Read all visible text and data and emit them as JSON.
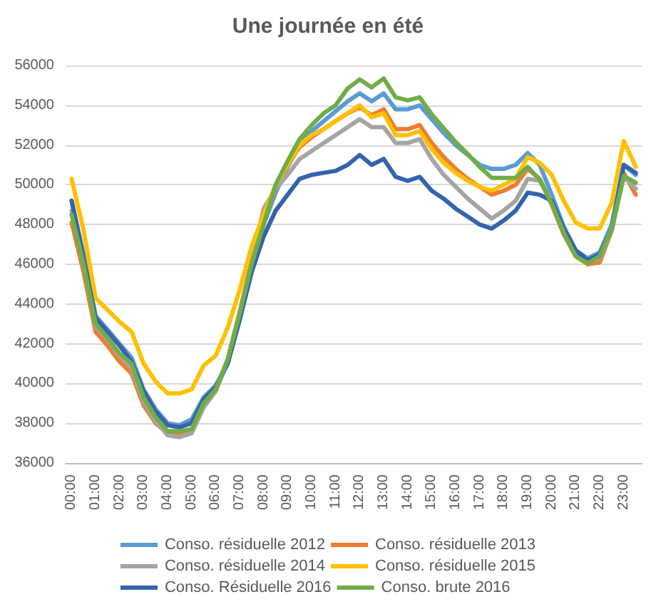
{
  "chart_data": {
    "type": "line",
    "title": "Une journée en été",
    "categories": [
      "00:00",
      null,
      "01:00",
      null,
      "02:00",
      null,
      "03:00",
      null,
      "04:00",
      null,
      "05:00",
      null,
      "06:00",
      null,
      "07:00",
      null,
      "08:00",
      null,
      "09:00",
      null,
      "10:00",
      null,
      "11:00",
      null,
      "12:00",
      null,
      "13:00",
      null,
      "14:00",
      null,
      "15:00",
      null,
      "16:00",
      null,
      "17:00",
      null,
      "18:00",
      null,
      "19:00",
      null,
      "20:00",
      null,
      "21:00",
      null,
      "22:00",
      null,
      "23:00",
      null
    ],
    "ylim": [
      36000,
      56000
    ],
    "yticks": [
      36000,
      38000,
      40000,
      42000,
      44000,
      46000,
      48000,
      50000,
      52000,
      54000,
      56000
    ],
    "grid": "y",
    "legend": "bottom",
    "marker": "none",
    "line_style": "solid",
    "series": [
      {
        "name": "Conso. résiduelle 2012",
        "color": "#5b9bd5",
        "values": [
          49200,
          46500,
          43400,
          42700,
          42000,
          41300,
          39700,
          38700,
          38000,
          37900,
          38200,
          39300,
          39900,
          41000,
          43200,
          45800,
          48000,
          49600,
          50900,
          52000,
          52700,
          53200,
          53700,
          54200,
          54600,
          54200,
          54600,
          53800,
          53800,
          54000,
          53300,
          52600,
          52000,
          51500,
          51000,
          50800,
          50800,
          51000,
          51600,
          51000,
          49500,
          47900,
          46700,
          46300,
          46600,
          48000,
          51000,
          50500
        ]
      },
      {
        "name": "Conso. résiduelle 2013",
        "color": "#ed7d31",
        "values": [
          48100,
          45600,
          42600,
          41900,
          41100,
          40500,
          38900,
          38000,
          37500,
          37400,
          37600,
          38900,
          39700,
          41200,
          43600,
          46200,
          48300,
          49800,
          51000,
          51900,
          52400,
          52800,
          53200,
          53600,
          53900,
          53500,
          53800,
          52800,
          52800,
          53000,
          52100,
          51400,
          50800,
          50300,
          49900,
          49500,
          49700,
          50000,
          50800,
          50300,
          49000,
          47500,
          46400,
          46000,
          46100,
          47700,
          50600,
          49500
        ]
      },
      {
        "name": "Conso. résiduelle 2014",
        "color": "#a5a5a5",
        "values": [
          48700,
          46000,
          42900,
          42200,
          41400,
          40800,
          39100,
          38100,
          37400,
          37300,
          37500,
          38800,
          39600,
          41100,
          43500,
          46100,
          48800,
          49800,
          50500,
          51300,
          51700,
          52100,
          52500,
          52900,
          53300,
          52900,
          52900,
          52100,
          52100,
          52300,
          51300,
          50500,
          49900,
          49300,
          48800,
          48300,
          48700,
          49200,
          50300,
          50200,
          49200,
          47700,
          46600,
          46100,
          46300,
          47700,
          50400,
          49800
        ]
      },
      {
        "name": "Conso. résiduelle 2015",
        "color": "#ffc000",
        "values": [
          50300,
          47700,
          44300,
          43700,
          43100,
          42600,
          41000,
          40100,
          39500,
          39500,
          39700,
          40900,
          41400,
          42800,
          44700,
          46900,
          48500,
          50000,
          51000,
          52000,
          52500,
          52800,
          53200,
          53600,
          54000,
          53400,
          53600,
          52500,
          52500,
          52700,
          51800,
          51100,
          50600,
          50200,
          49900,
          49700,
          50000,
          50300,
          51400,
          51100,
          50500,
          49200,
          48100,
          47800,
          47800,
          49100,
          52200,
          50900
        ]
      },
      {
        "name": "Conso. Résiduelle 2016",
        "color": "#3563ad",
        "values": [
          49200,
          46300,
          43300,
          42600,
          41900,
          41100,
          39600,
          38600,
          37900,
          37800,
          38000,
          39200,
          39800,
          41000,
          43200,
          45600,
          47400,
          48700,
          49500,
          50300,
          50500,
          50600,
          50700,
          51000,
          51500,
          51000,
          51300,
          50400,
          50200,
          50400,
          49700,
          49300,
          48800,
          48400,
          48000,
          47800,
          48200,
          48700,
          49600,
          49500,
          49200,
          47800,
          46700,
          46200,
          46500,
          47800,
          51000,
          50600
        ]
      },
      {
        "name": "Conso. brute 2016",
        "color": "#70ad47",
        "values": [
          48500,
          46000,
          43000,
          42300,
          41500,
          41000,
          39300,
          38300,
          37600,
          37600,
          37700,
          39000,
          39700,
          41200,
          43500,
          46000,
          48000,
          50000,
          51200,
          52300,
          53000,
          53600,
          54000,
          54850,
          55300,
          54900,
          55350,
          54400,
          54250,
          54400,
          53550,
          52850,
          52150,
          51550,
          50900,
          50350,
          50350,
          50350,
          50900,
          50250,
          49050,
          47600,
          46400,
          46050,
          46400,
          47800,
          50450,
          50100
        ]
      }
    ]
  }
}
